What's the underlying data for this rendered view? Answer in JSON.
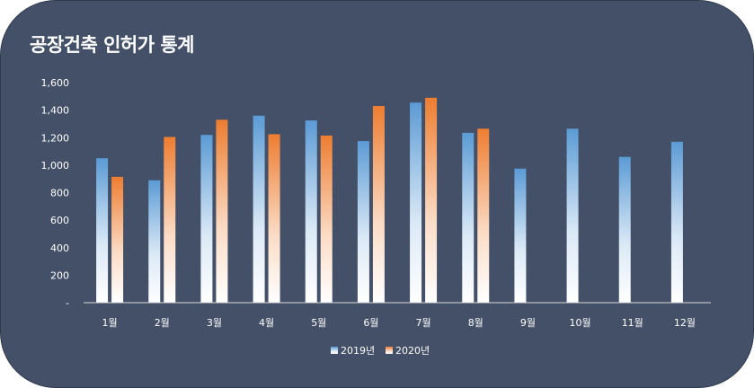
{
  "chart_data": {
    "type": "bar",
    "title": "공장건축 인허가 통계",
    "categories": [
      "1월",
      "2월",
      "3월",
      "4월",
      "5월",
      "6월",
      "7월",
      "8월",
      "9월",
      "10월",
      "11월",
      "12월"
    ],
    "series": [
      {
        "name": "2019년",
        "values": [
          1050,
          890,
          1220,
          1360,
          1325,
          1175,
          1455,
          1235,
          975,
          1265,
          1060,
          1170
        ]
      },
      {
        "name": "2020년",
        "values": [
          915,
          1205,
          1330,
          1225,
          1215,
          1430,
          1490,
          1265,
          null,
          null,
          null,
          null
        ]
      }
    ],
    "ylim": [
      0,
      1600
    ],
    "yticks": [
      0,
      200,
      400,
      600,
      800,
      1000,
      1200,
      1400,
      1600
    ],
    "ytick_labels": [
      "-",
      "200",
      "400",
      "600",
      "800",
      "1,000",
      "1,200",
      "1,400",
      "1,600"
    ],
    "colors": {
      "series_2019": "#5b9bd5",
      "series_2020": "#ed7d31",
      "background": "#435068",
      "text": "#ffffff"
    },
    "grid": false,
    "legend": "bottom"
  }
}
